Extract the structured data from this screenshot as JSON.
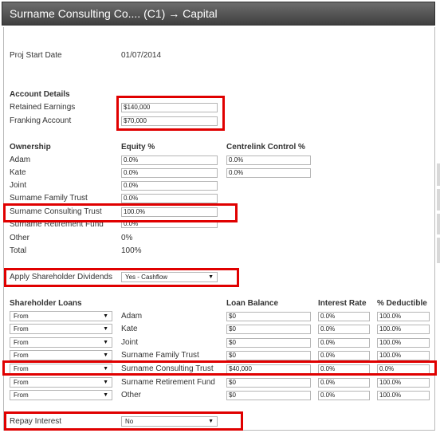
{
  "window": {
    "title": "Surname Consulting Co.... (C1) → Capital"
  },
  "proj_start": {
    "label": "Proj Start Date",
    "value": "01/07/2014"
  },
  "account_details": {
    "heading": "Account Details",
    "retained_earnings": {
      "label": "Retained Earnings",
      "value": "$140,000"
    },
    "franking_account": {
      "label": "Franking Account",
      "value": "$70,000"
    }
  },
  "ownership": {
    "heading": "Ownership",
    "equity_header": "Equity %",
    "centrelink_header": "Centrelink Control %",
    "rows": [
      {
        "name": "Adam",
        "equity": "0.0%",
        "centrelink": "0.0%"
      },
      {
        "name": "Kate",
        "equity": "0.0%",
        "centrelink": "0.0%"
      },
      {
        "name": "Joint",
        "equity": "0.0%"
      },
      {
        "name": "Surname Family Trust",
        "equity": "0.0%"
      },
      {
        "name": "Surname Consulting Trust",
        "equity": "100.0%"
      },
      {
        "name": "Surname Retirement Fund",
        "equity": "0.0%"
      }
    ],
    "other": {
      "label": "Other",
      "value": "0%"
    },
    "total": {
      "label": "Total",
      "value": "100%"
    }
  },
  "dividends": {
    "label": "Apply Shareholder Dividends",
    "value": "Yes - Cashflow"
  },
  "loans": {
    "heading": "Shareholder Loans",
    "balance_header": "Loan Balance",
    "interest_header": "Interest Rate",
    "deductible_header": "% Deductible",
    "rows": [
      {
        "direction": "From",
        "name": "Adam",
        "balance": "$0",
        "rate": "0.0%",
        "deductible": "100.0%"
      },
      {
        "direction": "From",
        "name": "Kate",
        "balance": "$0",
        "rate": "0.0%",
        "deductible": "100.0%"
      },
      {
        "direction": "From",
        "name": "Joint",
        "balance": "$0",
        "rate": "0.0%",
        "deductible": "100.0%"
      },
      {
        "direction": "From",
        "name": "Surname Family Trust",
        "balance": "$0",
        "rate": "0.0%",
        "deductible": "100.0%"
      },
      {
        "direction": "From",
        "name": "Surname Consulting Trust",
        "balance": "$40,000",
        "rate": "0.0%",
        "deductible": "0.0%"
      },
      {
        "direction": "From",
        "name": "Surname Retirement Fund",
        "balance": "$0",
        "rate": "0.0%",
        "deductible": "100.0%"
      },
      {
        "direction": "From",
        "name": "Other",
        "balance": "$0",
        "rate": "0.0%",
        "deductible": "100.0%"
      }
    ]
  },
  "repay": {
    "label": "Repay Interest",
    "value": "No"
  },
  "icons": {
    "dropdown": "dropdown-arrow-icon"
  },
  "colors": {
    "highlight": "#e00000",
    "titlebar": "#4a4a4a"
  }
}
